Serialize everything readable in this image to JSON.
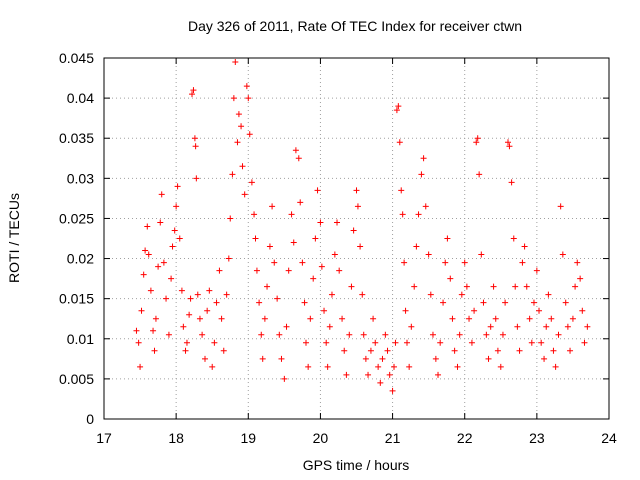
{
  "chart_data": {
    "type": "scatter",
    "title": "Day 326 of 2011, Rate Of TEC Index for receiver ctwn",
    "xlabel": "GPS time / hours",
    "ylabel": "ROTI / TECUs",
    "xlim": [
      17,
      24
    ],
    "ylim": [
      0,
      0.045
    ],
    "xticks": [
      "17",
      "18",
      "19",
      "20",
      "21",
      "22",
      "23",
      "24"
    ],
    "yticks": [
      "0",
      "0.005",
      "0.01",
      "0.015",
      "0.02",
      "0.025",
      "0.03",
      "0.035",
      "0.04",
      "0.045"
    ],
    "grid": true,
    "marker": "+",
    "color": "#ff0000",
    "series": [
      {
        "points": [
          [
            17.45,
            0.011
          ],
          [
            17.48,
            0.0095
          ],
          [
            17.5,
            0.0065
          ],
          [
            17.52,
            0.0135
          ],
          [
            17.55,
            0.018
          ],
          [
            17.57,
            0.021
          ],
          [
            17.6,
            0.024
          ],
          [
            17.62,
            0.0205
          ],
          [
            17.65,
            0.016
          ],
          [
            17.68,
            0.011
          ],
          [
            17.7,
            0.0085
          ],
          [
            17.72,
            0.0125
          ],
          [
            17.75,
            0.019
          ],
          [
            17.78,
            0.0245
          ],
          [
            17.8,
            0.028
          ],
          [
            17.83,
            0.0195
          ],
          [
            17.86,
            0.015
          ],
          [
            17.9,
            0.0105
          ],
          [
            17.93,
            0.0175
          ],
          [
            17.95,
            0.0215
          ],
          [
            17.98,
            0.0235
          ],
          [
            18.0,
            0.0265
          ],
          [
            18.02,
            0.029
          ],
          [
            18.05,
            0.0225
          ],
          [
            18.08,
            0.016
          ],
          [
            18.1,
            0.0115
          ],
          [
            18.13,
            0.0085
          ],
          [
            18.15,
            0.0095
          ],
          [
            18.18,
            0.013
          ],
          [
            18.2,
            0.015
          ],
          [
            18.22,
            0.0405
          ],
          [
            18.24,
            0.041
          ],
          [
            18.26,
            0.035
          ],
          [
            18.27,
            0.034
          ],
          [
            18.28,
            0.03
          ],
          [
            18.3,
            0.0155
          ],
          [
            18.33,
            0.0125
          ],
          [
            18.36,
            0.0105
          ],
          [
            18.4,
            0.0075
          ],
          [
            18.43,
            0.0135
          ],
          [
            18.46,
            0.016
          ],
          [
            18.5,
            0.0065
          ],
          [
            18.53,
            0.0095
          ],
          [
            18.56,
            0.0145
          ],
          [
            18.6,
            0.0185
          ],
          [
            18.63,
            0.0125
          ],
          [
            18.66,
            0.0085
          ],
          [
            18.7,
            0.0155
          ],
          [
            18.73,
            0.02
          ],
          [
            18.75,
            0.025
          ],
          [
            18.78,
            0.0305
          ],
          [
            18.8,
            0.04
          ],
          [
            18.82,
            0.0445
          ],
          [
            18.85,
            0.0345
          ],
          [
            18.87,
            0.038
          ],
          [
            18.9,
            0.0365
          ],
          [
            18.92,
            0.0315
          ],
          [
            18.95,
            0.028
          ],
          [
            18.98,
            0.0415
          ],
          [
            19.0,
            0.04
          ],
          [
            19.02,
            0.0355
          ],
          [
            19.05,
            0.0295
          ],
          [
            19.08,
            0.0255
          ],
          [
            19.1,
            0.0225
          ],
          [
            19.12,
            0.0185
          ],
          [
            19.15,
            0.0145
          ],
          [
            19.18,
            0.0105
          ],
          [
            19.2,
            0.0075
          ],
          [
            19.23,
            0.0125
          ],
          [
            19.26,
            0.0165
          ],
          [
            19.3,
            0.0215
          ],
          [
            19.33,
            0.0265
          ],
          [
            19.36,
            0.0195
          ],
          [
            19.4,
            0.015
          ],
          [
            19.43,
            0.0105
          ],
          [
            19.46,
            0.0075
          ],
          [
            19.5,
            0.005
          ],
          [
            19.53,
            0.0115
          ],
          [
            19.56,
            0.0185
          ],
          [
            19.6,
            0.0255
          ],
          [
            19.63,
            0.022
          ],
          [
            19.66,
            0.0335
          ],
          [
            19.7,
            0.0325
          ],
          [
            19.72,
            0.027
          ],
          [
            19.75,
            0.0195
          ],
          [
            19.78,
            0.0145
          ],
          [
            19.8,
            0.0095
          ],
          [
            19.83,
            0.0065
          ],
          [
            19.86,
            0.0125
          ],
          [
            19.9,
            0.0175
          ],
          [
            19.93,
            0.0225
          ],
          [
            19.96,
            0.0285
          ],
          [
            20.0,
            0.0245
          ],
          [
            20.02,
            0.019
          ],
          [
            20.05,
            0.0135
          ],
          [
            20.08,
            0.0095
          ],
          [
            20.1,
            0.0065
          ],
          [
            20.13,
            0.0115
          ],
          [
            20.16,
            0.0155
          ],
          [
            20.2,
            0.0205
          ],
          [
            20.23,
            0.0245
          ],
          [
            20.26,
            0.0185
          ],
          [
            20.3,
            0.0125
          ],
          [
            20.33,
            0.0085
          ],
          [
            20.36,
            0.0055
          ],
          [
            20.4,
            0.0105
          ],
          [
            20.43,
            0.0165
          ],
          [
            20.46,
            0.0235
          ],
          [
            20.5,
            0.0285
          ],
          [
            20.52,
            0.0265
          ],
          [
            20.55,
            0.0215
          ],
          [
            20.58,
            0.0155
          ],
          [
            20.6,
            0.0105
          ],
          [
            20.63,
            0.0075
          ],
          [
            20.66,
            0.0055
          ],
          [
            20.7,
            0.0085
          ],
          [
            20.73,
            0.0125
          ],
          [
            20.76,
            0.0095
          ],
          [
            20.8,
            0.0065
          ],
          [
            20.83,
            0.0045
          ],
          [
            20.86,
            0.0075
          ],
          [
            20.9,
            0.0105
          ],
          [
            20.93,
            0.0085
          ],
          [
            20.96,
            0.0055
          ],
          [
            21.0,
            0.0035
          ],
          [
            21.02,
            0.0065
          ],
          [
            21.04,
            0.0095
          ],
          [
            21.06,
            0.0385
          ],
          [
            21.08,
            0.039
          ],
          [
            21.1,
            0.0345
          ],
          [
            21.12,
            0.0285
          ],
          [
            21.14,
            0.0255
          ],
          [
            21.16,
            0.0195
          ],
          [
            21.18,
            0.0135
          ],
          [
            21.2,
            0.0095
          ],
          [
            21.23,
            0.0065
          ],
          [
            21.26,
            0.0115
          ],
          [
            21.3,
            0.0165
          ],
          [
            21.33,
            0.0215
          ],
          [
            21.36,
            0.0255
          ],
          [
            21.4,
            0.0305
          ],
          [
            21.43,
            0.0325
          ],
          [
            21.46,
            0.0265
          ],
          [
            21.5,
            0.0205
          ],
          [
            21.53,
            0.0155
          ],
          [
            21.56,
            0.0105
          ],
          [
            21.6,
            0.0075
          ],
          [
            21.63,
            0.0055
          ],
          [
            21.66,
            0.0095
          ],
          [
            21.7,
            0.0145
          ],
          [
            21.73,
            0.0195
          ],
          [
            21.76,
            0.0225
          ],
          [
            21.8,
            0.0175
          ],
          [
            21.83,
            0.0125
          ],
          [
            21.86,
            0.0085
          ],
          [
            21.9,
            0.0065
          ],
          [
            21.93,
            0.0105
          ],
          [
            21.96,
            0.0155
          ],
          [
            22.0,
            0.0195
          ],
          [
            22.03,
            0.0165
          ],
          [
            22.06,
            0.0125
          ],
          [
            22.1,
            0.0095
          ],
          [
            22.13,
            0.0135
          ],
          [
            22.16,
            0.0345
          ],
          [
            22.18,
            0.035
          ],
          [
            22.2,
            0.0305
          ],
          [
            22.23,
            0.0205
          ],
          [
            22.26,
            0.0145
          ],
          [
            22.3,
            0.0105
          ],
          [
            22.33,
            0.0075
          ],
          [
            22.36,
            0.0115
          ],
          [
            22.4,
            0.0165
          ],
          [
            22.43,
            0.0125
          ],
          [
            22.46,
            0.0085
          ],
          [
            22.5,
            0.0065
          ],
          [
            22.53,
            0.0105
          ],
          [
            22.56,
            0.0145
          ],
          [
            22.6,
            0.0345
          ],
          [
            22.62,
            0.034
          ],
          [
            22.65,
            0.0295
          ],
          [
            22.68,
            0.0225
          ],
          [
            22.7,
            0.0165
          ],
          [
            22.73,
            0.0115
          ],
          [
            22.76,
            0.0085
          ],
          [
            22.8,
            0.0195
          ],
          [
            22.83,
            0.0215
          ],
          [
            22.86,
            0.0165
          ],
          [
            22.9,
            0.0125
          ],
          [
            22.93,
            0.0095
          ],
          [
            22.96,
            0.0145
          ],
          [
            23.0,
            0.0185
          ],
          [
            23.03,
            0.0135
          ],
          [
            23.06,
            0.0095
          ],
          [
            23.1,
            0.0075
          ],
          [
            23.13,
            0.0115
          ],
          [
            23.16,
            0.0155
          ],
          [
            23.2,
            0.0125
          ],
          [
            23.23,
            0.0085
          ],
          [
            23.26,
            0.0065
          ],
          [
            23.3,
            0.0105
          ],
          [
            23.33,
            0.0265
          ],
          [
            23.36,
            0.0205
          ],
          [
            23.4,
            0.0145
          ],
          [
            23.43,
            0.0115
          ],
          [
            23.46,
            0.0085
          ],
          [
            23.5,
            0.0125
          ],
          [
            23.53,
            0.0165
          ],
          [
            23.56,
            0.0195
          ],
          [
            23.6,
            0.0175
          ],
          [
            23.63,
            0.0135
          ],
          [
            23.66,
            0.0095
          ],
          [
            23.7,
            0.0115
          ]
        ]
      }
    ]
  }
}
